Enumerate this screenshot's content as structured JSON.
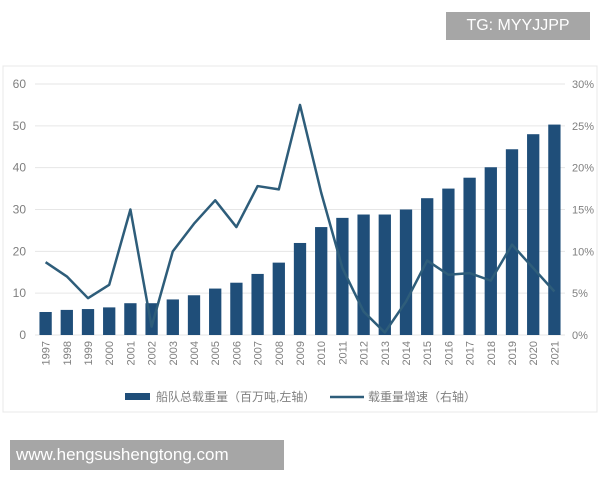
{
  "watermarks": {
    "top": "TG: MYYJJPP",
    "bottom": "www.hengsushengtong.com"
  },
  "colors": {
    "bar": "#1f4e79",
    "line": "#2e5d7a",
    "grid": "#e6e6e6",
    "axis_text": "#7f7f7f"
  },
  "chart_data": {
    "type": "bar+line",
    "categories": [
      "1997",
      "1998",
      "1999",
      "2000",
      "2001",
      "2002",
      "2003",
      "2004",
      "2005",
      "2006",
      "2007",
      "2008",
      "2009",
      "2010",
      "2011",
      "2012",
      "2013",
      "2014",
      "2015",
      "2016",
      "2017",
      "2018",
      "2019",
      "2020",
      "2021"
    ],
    "series": [
      {
        "name": "船队总载重量（百万吨,左轴）",
        "type": "bar",
        "axis": "left",
        "values": [
          5.5,
          6.0,
          6.2,
          6.6,
          7.6,
          7.6,
          8.5,
          9.5,
          11.1,
          12.5,
          14.6,
          17.3,
          22.0,
          25.8,
          28.0,
          28.8,
          28.8,
          30.0,
          32.7,
          35.0,
          37.6,
          40.1,
          44.4,
          48.0,
          50.3
        ]
      },
      {
        "name": "载重量增速（右轴）",
        "type": "line",
        "axis": "right",
        "values": [
          8.7,
          7.0,
          4.4,
          6.0,
          15.0,
          1.0,
          10.0,
          13.3,
          16.1,
          12.9,
          17.8,
          17.4,
          27.5,
          17.0,
          8.0,
          2.8,
          0.3,
          4.0,
          8.9,
          7.2,
          7.4,
          6.5,
          10.8,
          8.0,
          5.2
        ]
      }
    ],
    "y_left": {
      "range": [
        0,
        60
      ],
      "ticks": [
        "0",
        "10",
        "20",
        "30",
        "40",
        "50",
        "60"
      ]
    },
    "y_right": {
      "range": [
        0,
        30
      ],
      "ticks": [
        "0%",
        "5%",
        "10%",
        "15%",
        "20%",
        "25%",
        "30%"
      ]
    },
    "grid": true,
    "legend": "bottom"
  }
}
